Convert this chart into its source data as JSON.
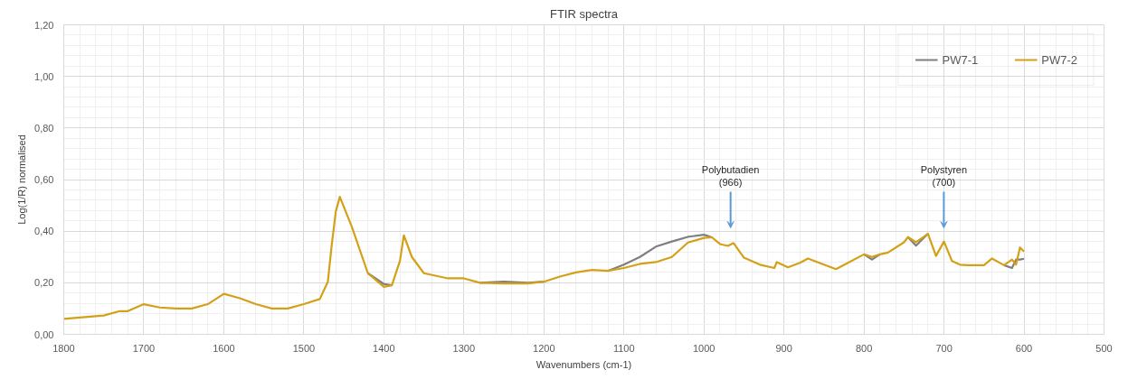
{
  "chart_data": {
    "type": "line",
    "title": "FTIR spectra",
    "xlabel": "Wavenumbers (cm-1)",
    "ylabel": "Log(1/R) normalised",
    "x": [
      1800,
      1750,
      1730,
      1720,
      1700,
      1680,
      1660,
      1640,
      1620,
      1600,
      1580,
      1560,
      1540,
      1520,
      1500,
      1480,
      1470,
      1465,
      1460,
      1455,
      1440,
      1420,
      1400,
      1390,
      1380,
      1375,
      1365,
      1350,
      1320,
      1300,
      1280,
      1250,
      1220,
      1200,
      1180,
      1160,
      1140,
      1120,
      1100,
      1080,
      1060,
      1040,
      1020,
      1000,
      990,
      980,
      970,
      963,
      950,
      930,
      912,
      909,
      895,
      880,
      870,
      850,
      835,
      820,
      800,
      790,
      780,
      770,
      750,
      745,
      735,
      720,
      710,
      700,
      690,
      680,
      670,
      650,
      640,
      625,
      615,
      610,
      605,
      600
    ],
    "series": [
      {
        "name": "PW7-1",
        "color": "#7f7f7f",
        "values": [
          null,
          null,
          null,
          null,
          null,
          null,
          null,
          null,
          null,
          null,
          null,
          null,
          null,
          null,
          null,
          null,
          null,
          null,
          null,
          null,
          null,
          0.237,
          0.195,
          0.19,
          null,
          null,
          null,
          null,
          null,
          null,
          0.2,
          0.204,
          0.2,
          0.204,
          null,
          null,
          null,
          0.246,
          0.27,
          0.3,
          0.34,
          0.36,
          0.378,
          0.386,
          0.376,
          null,
          null,
          null,
          null,
          null,
          null,
          null,
          null,
          null,
          null,
          null,
          null,
          null,
          0.31,
          0.29,
          0.31,
          null,
          null,
          0.377,
          0.344,
          0.39,
          null,
          null,
          null,
          null,
          null,
          null,
          null,
          0.268,
          0.257,
          0.29,
          0.29,
          0.293
        ]
      },
      {
        "name": "PW7-2",
        "color": "#d4a017",
        "values": [
          0.06,
          0.073,
          0.09,
          0.09,
          0.117,
          0.104,
          0.1,
          0.1,
          0.117,
          0.157,
          0.14,
          0.117,
          0.1,
          0.1,
          0.117,
          0.137,
          0.204,
          0.35,
          0.477,
          0.533,
          0.417,
          0.237,
          0.184,
          0.19,
          0.284,
          0.384,
          0.3,
          0.237,
          0.217,
          0.217,
          0.2,
          0.197,
          0.197,
          0.204,
          0.224,
          0.24,
          0.25,
          0.246,
          0.257,
          0.273,
          0.28,
          0.3,
          0.356,
          0.374,
          0.376,
          0.35,
          0.343,
          0.354,
          0.297,
          0.27,
          0.257,
          0.28,
          0.26,
          0.277,
          0.294,
          0.27,
          0.253,
          0.277,
          0.31,
          0.3,
          0.31,
          0.317,
          0.357,
          0.377,
          0.357,
          0.39,
          0.304,
          0.36,
          0.284,
          0.27,
          0.268,
          0.268,
          0.294,
          0.268,
          0.29,
          0.27,
          0.337,
          0.321
        ]
      }
    ],
    "xlim": [
      1800,
      500
    ],
    "xticks": [
      1800,
      1700,
      1600,
      1500,
      1400,
      1300,
      1200,
      1100,
      1000,
      900,
      800,
      700,
      600,
      500
    ],
    "ylim": [
      0,
      1.2
    ],
    "yticks": [
      {
        "value": 0,
        "label": "0,00"
      },
      {
        "value": 0.2,
        "label": "0,20"
      },
      {
        "value": 0.4,
        "label": "0,40"
      },
      {
        "value": 0.6,
        "label": "0,60"
      },
      {
        "value": 0.8,
        "label": "0,80"
      },
      {
        "value": 1.0,
        "label": "1,00"
      },
      {
        "value": 1.2,
        "label": "1,20"
      }
    ],
    "annotations": [
      "Polybutadien\n(966)",
      "Polystyren\n(700)"
    ],
    "grid": true,
    "legend": "top right",
    "marker": "none",
    "line_style": "solid"
  }
}
